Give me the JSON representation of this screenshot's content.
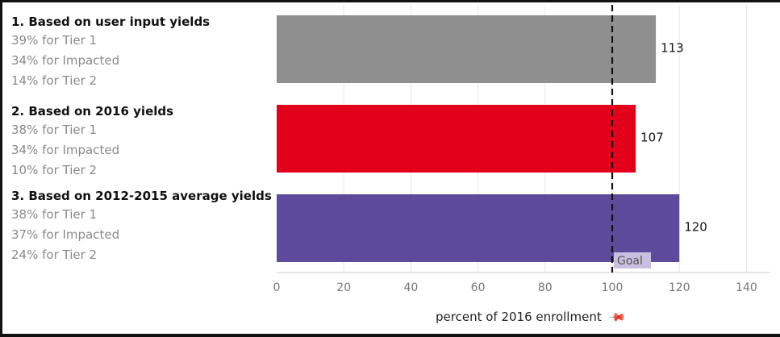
{
  "chart_data": {
    "type": "bar",
    "orientation": "horizontal",
    "categories": [
      "1. Based on user input yields",
      "2. Based on 2016 yields",
      "3. Based on 2012-2015 average yields"
    ],
    "category_details": [
      [
        "39% for Tier 1",
        "34% for Impacted",
        "14% for Tier 2"
      ],
      [
        "38% for Tier 1",
        "34% for Impacted",
        "10% for Tier 2"
      ],
      [
        "38% for Tier 1",
        "37% for Impacted",
        "24% for Tier 2"
      ]
    ],
    "values": [
      113,
      107,
      120
    ],
    "value_labels": [
      "113",
      "107",
      "120"
    ],
    "bar_colors": [
      "#8f8f8f",
      "#e2001a",
      "#5e4a9a"
    ],
    "xlabel": "percent of 2016 enrollment",
    "xlim": [
      0,
      140
    ],
    "xticks": [
      0,
      20,
      40,
      60,
      80,
      100,
      120,
      140
    ],
    "xtick_labels": [
      "0",
      "20",
      "40",
      "60",
      "80",
      "100",
      "120",
      "140"
    ],
    "reference_line": {
      "value": 100,
      "label": "Goal",
      "style": "dashed"
    },
    "grid": true
  },
  "icons": {
    "axis_pin": "pin-icon"
  }
}
